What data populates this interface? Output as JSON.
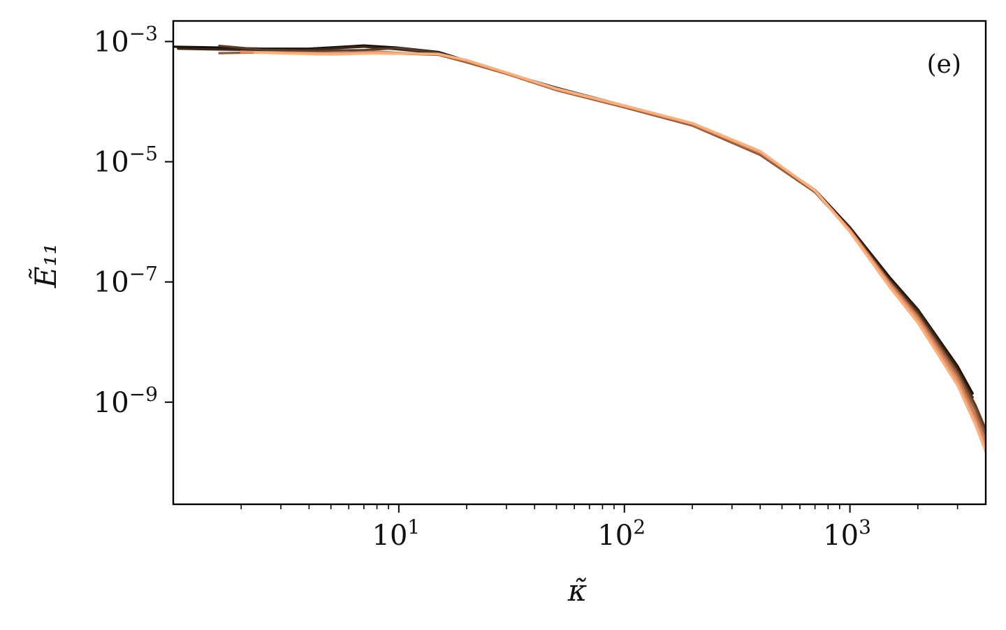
{
  "chart_data": {
    "type": "line",
    "title": "",
    "xlabel": "κ̃",
    "ylabel": "Ẽ₁₁",
    "xscale": "log",
    "yscale": "log",
    "xlim": [
      1.0,
      4000
    ],
    "ylim": [
      2e-11,
      0.0022
    ],
    "grid": false,
    "legend": "none",
    "annotation": "(e)",
    "x_ticks": [
      {
        "value": 10,
        "label_base": "10",
        "label_exp": "1"
      },
      {
        "value": 100,
        "label_base": "10",
        "label_exp": "2"
      },
      {
        "value": 1000,
        "label_base": "10",
        "label_exp": "3"
      }
    ],
    "y_ticks": [
      {
        "value": 0.001,
        "label_base": "10",
        "label_exp": "−3"
      },
      {
        "value": 1e-05,
        "label_base": "10",
        "label_exp": "−5"
      },
      {
        "value": 1e-07,
        "label_base": "10",
        "label_exp": "−7"
      },
      {
        "value": 1e-09,
        "label_base": "10",
        "label_exp": "−9"
      }
    ],
    "series": [
      {
        "color": "#1a0e08",
        "width": 3.2,
        "x": [
          1.0,
          1.5,
          2.5,
          4,
          7,
          10,
          15,
          20,
          30,
          50,
          100,
          200,
          400,
          700,
          1000,
          1500,
          2000,
          3000,
          3500
        ],
        "y": [
          0.00082,
          0.0008,
          0.00076,
          0.00076,
          0.00086,
          0.00079,
          0.00067,
          0.00048,
          0.0003,
          0.00017,
          8.6e-05,
          4.3e-05,
          1.4e-05,
          3.4e-06,
          8.1e-07,
          1.2e-07,
          3.5e-08,
          4e-09,
          1.4e-09
        ]
      },
      {
        "color": "#3b2414",
        "width": 3.2,
        "x": [
          1.05,
          1.5,
          2.5,
          4,
          7,
          10,
          15,
          20,
          30,
          50,
          100,
          200,
          400,
          700,
          1000,
          1500,
          2000,
          3000,
          3500
        ],
        "y": [
          0.00076,
          0.00074,
          0.00072,
          0.00073,
          0.00082,
          0.00074,
          0.00064,
          0.00046,
          0.00029,
          0.000165,
          8.4e-05,
          4.2e-05,
          1.35e-05,
          3.3e-06,
          7.8e-07,
          1.1e-07,
          3.3e-08,
          3.6e-09,
          1.2e-09
        ]
      },
      {
        "color": "#5c3b24",
        "width": 3.2,
        "x": [
          1.6,
          2.5,
          4,
          7,
          10,
          15,
          20,
          30,
          50,
          100,
          200,
          400,
          700,
          1000,
          1500,
          2000,
          3000,
          3600,
          4000
        ],
        "y": [
          0.00085,
          0.00073,
          0.0007,
          0.00072,
          0.00078,
          0.00065,
          0.00047,
          0.000295,
          0.00016,
          8.2e-05,
          4.1e-05,
          1.3e-05,
          3.2e-06,
          7.5e-07,
          1.05e-07,
          3e-08,
          3.2e-09,
          9e-10,
          3.5e-10
        ]
      },
      {
        "color": "#8c5a3a",
        "width": 3.2,
        "x": [
          1.6,
          2.5,
          4,
          7,
          10,
          15,
          20,
          30,
          50,
          100,
          200,
          400,
          700,
          1000,
          1500,
          2000,
          3000,
          3600,
          4000
        ],
        "y": [
          0.00064,
          0.00066,
          0.00065,
          0.00064,
          0.00063,
          0.0006,
          0.00045,
          0.00029,
          0.000155,
          8e-05,
          4e-05,
          1.3e-05,
          3.1e-06,
          7.2e-07,
          1e-07,
          2.8e-08,
          3e-09,
          7.5e-10,
          2.8e-10
        ]
      },
      {
        "color": "#c07a55",
        "width": 3.2,
        "x": [
          2.0,
          3,
          5,
          8,
          10,
          15,
          20,
          30,
          50,
          100,
          200,
          400,
          700,
          1000,
          1500,
          2000,
          3000,
          3600,
          4000
        ],
        "y": [
          0.00065,
          0.00066,
          0.00064,
          0.00068,
          0.00065,
          0.00061,
          0.00047,
          0.000295,
          0.00016,
          8.3e-05,
          4.2e-05,
          1.4e-05,
          3.3e-06,
          7.4e-07,
          9.6e-08,
          2.6e-08,
          2.6e-09,
          6e-10,
          2.2e-10
        ]
      },
      {
        "color": "#e8926a",
        "width": 3.2,
        "x": [
          2.0,
          3,
          5,
          8,
          10,
          15,
          20,
          30,
          50,
          100,
          200,
          400,
          700,
          1000,
          1500,
          2000,
          3000,
          3600,
          4000
        ],
        "y": [
          0.00068,
          0.00065,
          0.00063,
          0.00066,
          0.00064,
          0.00062,
          0.00049,
          0.0003,
          0.00016,
          8.4e-05,
          4.3e-05,
          1.45e-05,
          3.4e-06,
          7.2e-07,
          9e-08,
          2.4e-08,
          2.2e-09,
          5e-10,
          1.8e-10
        ]
      },
      {
        "color": "#ffb07a",
        "width": 3.6,
        "x": [
          2.3,
          3,
          5,
          8,
          10,
          15,
          20,
          30,
          50,
          100,
          200,
          400,
          700,
          1000,
          1500,
          2000,
          3000,
          3600,
          4000
        ],
        "y": [
          0.00066,
          0.00064,
          0.00061,
          0.00064,
          0.00063,
          0.00062,
          0.00049,
          0.000305,
          0.000165,
          8.6e-05,
          4.4e-05,
          1.5e-05,
          3.3e-06,
          6.8e-07,
          8.2e-08,
          2.1e-08,
          1.9e-09,
          4.2e-10,
          1.5e-10
        ]
      }
    ]
  }
}
